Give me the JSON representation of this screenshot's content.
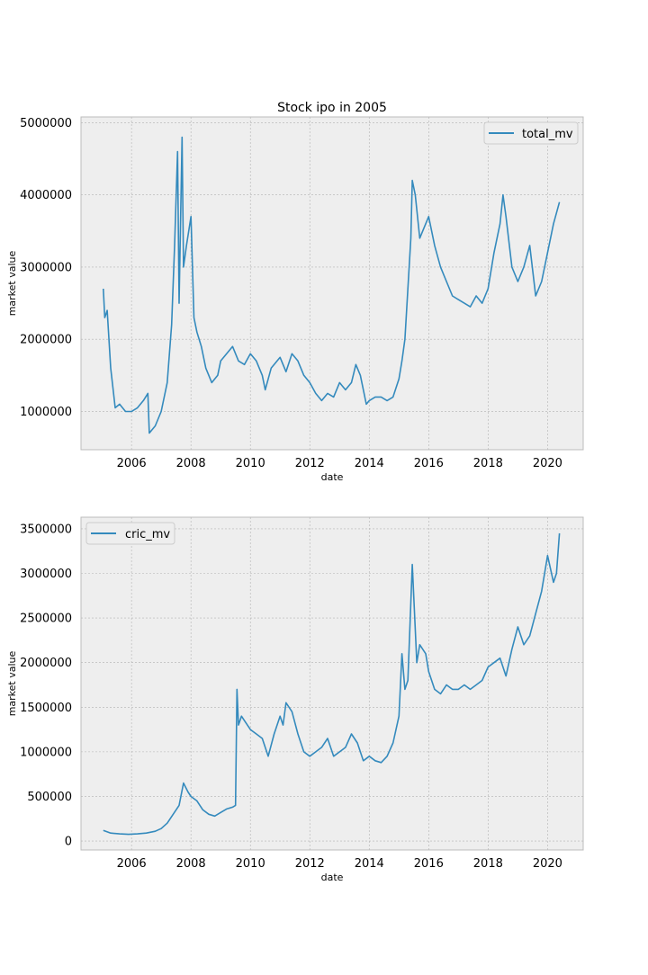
{
  "figure": {
    "title": "Stock ipo in 2005"
  },
  "chart_data": [
    {
      "type": "line",
      "title": "Stock ipo in 2005",
      "xlabel": "date",
      "ylabel": "market value",
      "x_ticks": [
        "2006",
        "2008",
        "2010",
        "2012",
        "2014",
        "2016",
        "2018",
        "2020"
      ],
      "y_ticks": [
        "1000000",
        "2000000",
        "3000000",
        "4000000",
        "5000000"
      ],
      "xlim": [
        2004.3,
        2021.2
      ],
      "ylim": [
        470000,
        5080000
      ],
      "grid": true,
      "legend": "top-right",
      "series": [
        {
          "name": "total_mv",
          "color": "#348abd",
          "x": [
            2005.05,
            2005.1,
            2005.18,
            2005.3,
            2005.45,
            2005.6,
            2005.8,
            2006.0,
            2006.2,
            2006.4,
            2006.55,
            2006.6,
            2006.8,
            2007.0,
            2007.2,
            2007.35,
            2007.45,
            2007.55,
            2007.6,
            2007.7,
            2007.75,
            2007.85,
            2008.0,
            2008.1,
            2008.2,
            2008.35,
            2008.5,
            2008.7,
            2008.9,
            2009.0,
            2009.2,
            2009.4,
            2009.6,
            2009.8,
            2010.0,
            2010.2,
            2010.4,
            2010.5,
            2010.7,
            2010.9,
            2011.0,
            2011.2,
            2011.4,
            2011.6,
            2011.8,
            2012.0,
            2012.2,
            2012.4,
            2012.6,
            2012.8,
            2013.0,
            2013.2,
            2013.4,
            2013.55,
            2013.7,
            2013.9,
            2014.0,
            2014.2,
            2014.4,
            2014.6,
            2014.8,
            2015.0,
            2015.1,
            2015.2,
            2015.3,
            2015.4,
            2015.45,
            2015.55,
            2015.7,
            2015.9,
            2016.0,
            2016.2,
            2016.4,
            2016.6,
            2016.8,
            2017.0,
            2017.2,
            2017.4,
            2017.6,
            2017.8,
            2018.0,
            2018.2,
            2018.4,
            2018.5,
            2018.6,
            2018.8,
            2019.0,
            2019.2,
            2019.4,
            2019.6,
            2019.8,
            2020.0,
            2020.2,
            2020.4
          ],
          "values": [
            2700000,
            2300000,
            2400000,
            1600000,
            1050000,
            1100000,
            1000000,
            1000000,
            1050000,
            1150000,
            1250000,
            700000,
            800000,
            1000000,
            1400000,
            2200000,
            3300000,
            4600000,
            2500000,
            4800000,
            3000000,
            3300000,
            3700000,
            2300000,
            2100000,
            1900000,
            1600000,
            1400000,
            1500000,
            1700000,
            1800000,
            1900000,
            1700000,
            1650000,
            1800000,
            1700000,
            1500000,
            1300000,
            1600000,
            1700000,
            1750000,
            1550000,
            1800000,
            1700000,
            1500000,
            1400000,
            1250000,
            1150000,
            1250000,
            1200000,
            1400000,
            1300000,
            1400000,
            1650000,
            1500000,
            1100000,
            1150000,
            1200000,
            1200000,
            1150000,
            1200000,
            1450000,
            1700000,
            2000000,
            2700000,
            3400000,
            4200000,
            4000000,
            3400000,
            3600000,
            3700000,
            3300000,
            3000000,
            2800000,
            2600000,
            2550000,
            2500000,
            2450000,
            2600000,
            2500000,
            2700000,
            3200000,
            3600000,
            4000000,
            3700000,
            3000000,
            2800000,
            3000000,
            3300000,
            2600000,
            2800000,
            3200000,
            3600000,
            3900000
          ]
        }
      ]
    },
    {
      "type": "line",
      "title": "",
      "xlabel": "date",
      "ylabel": "market value",
      "x_ticks": [
        "2006",
        "2008",
        "2010",
        "2012",
        "2014",
        "2016",
        "2018",
        "2020"
      ],
      "y_ticks": [
        "0",
        "500000",
        "1000000",
        "1500000",
        "2000000",
        "2500000",
        "3000000",
        "3500000"
      ],
      "xlim": [
        2004.3,
        2021.2
      ],
      "ylim": [
        -100000,
        3630000
      ],
      "grid": true,
      "legend": "top-left",
      "series": [
        {
          "name": "cric_mv",
          "color": "#348abd",
          "x": [
            2005.05,
            2005.3,
            2005.6,
            2005.9,
            2006.2,
            2006.5,
            2006.8,
            2007.0,
            2007.2,
            2007.4,
            2007.6,
            2007.75,
            2007.9,
            2008.0,
            2008.2,
            2008.4,
            2008.6,
            2008.8,
            2009.0,
            2009.2,
            2009.4,
            2009.5,
            2009.55,
            2009.6,
            2009.7,
            2009.8,
            2010.0,
            2010.2,
            2010.4,
            2010.6,
            2010.8,
            2011.0,
            2011.1,
            2011.2,
            2011.4,
            2011.6,
            2011.8,
            2012.0,
            2012.2,
            2012.4,
            2012.6,
            2012.8,
            2013.0,
            2013.2,
            2013.4,
            2013.6,
            2013.8,
            2014.0,
            2014.2,
            2014.4,
            2014.6,
            2014.8,
            2015.0,
            2015.1,
            2015.2,
            2015.3,
            2015.45,
            2015.6,
            2015.7,
            2015.9,
            2016.0,
            2016.2,
            2016.4,
            2016.6,
            2016.8,
            2017.0,
            2017.2,
            2017.4,
            2017.6,
            2017.8,
            2018.0,
            2018.2,
            2018.4,
            2018.6,
            2018.8,
            2019.0,
            2019.2,
            2019.4,
            2019.6,
            2019.8,
            2020.0,
            2020.2,
            2020.3,
            2020.4
          ],
          "values": [
            120000,
            90000,
            80000,
            75000,
            80000,
            90000,
            110000,
            140000,
            200000,
            300000,
            400000,
            650000,
            550000,
            500000,
            450000,
            350000,
            300000,
            280000,
            320000,
            360000,
            380000,
            400000,
            1700000,
            1300000,
            1400000,
            1350000,
            1250000,
            1200000,
            1150000,
            950000,
            1200000,
            1400000,
            1300000,
            1550000,
            1450000,
            1200000,
            1000000,
            950000,
            1000000,
            1050000,
            1150000,
            950000,
            1000000,
            1050000,
            1200000,
            1100000,
            900000,
            950000,
            900000,
            880000,
            950000,
            1100000,
            1400000,
            2100000,
            1700000,
            1800000,
            3100000,
            2000000,
            2200000,
            2100000,
            1900000,
            1700000,
            1650000,
            1750000,
            1700000,
            1700000,
            1750000,
            1700000,
            1750000,
            1800000,
            1950000,
            2000000,
            2050000,
            1850000,
            2150000,
            2400000,
            2200000,
            2300000,
            2550000,
            2800000,
            3200000,
            2900000,
            3000000,
            3450000
          ]
        }
      ]
    }
  ]
}
